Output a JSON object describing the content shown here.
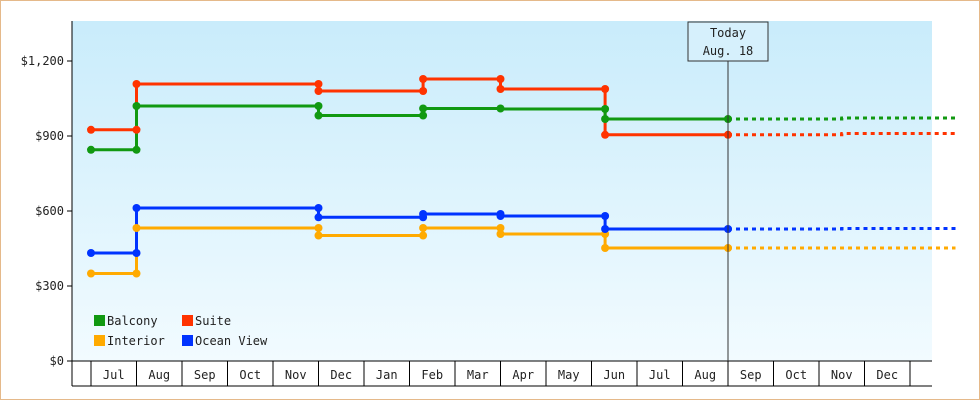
{
  "chart_data": {
    "type": "line",
    "step": true,
    "x_labels": [
      "Jul",
      "Aug",
      "Sep",
      "Oct",
      "Nov",
      "Dec",
      "Jan",
      "Feb",
      "Mar",
      "Apr",
      "May",
      "Jun",
      "Jul",
      "Aug",
      "Sep",
      "Oct",
      "Nov",
      "Dec"
    ],
    "y_ticks": [
      {
        "value": 0,
        "label": "$0"
      },
      {
        "value": 300,
        "label": "$300"
      },
      {
        "value": 600,
        "label": "$600"
      },
      {
        "value": 900,
        "label": "$900"
      },
      {
        "value": 1200,
        "label": "$1,200"
      }
    ],
    "ylim": [
      0,
      1200
    ],
    "grid": false,
    "legend_position": "bottom-left",
    "today_marker": {
      "line1": "Today",
      "line2": "Aug. 18",
      "month_pos": 13.5
    },
    "series": [
      {
        "name": "Balcony",
        "color": "#119911",
        "points": [
          [
            -0.5,
            845
          ],
          [
            0.5,
            845
          ],
          [
            0.5,
            1020
          ],
          [
            4.5,
            1020
          ],
          [
            4.5,
            982
          ],
          [
            6.8,
            982
          ],
          [
            6.8,
            1010
          ],
          [
            8.5,
            1010
          ],
          [
            8.5,
            1008
          ],
          [
            10.8,
            1008
          ],
          [
            10.8,
            968
          ],
          [
            13.5,
            968
          ]
        ],
        "markers": [
          [
            -0.5,
            845
          ],
          [
            0.5,
            845
          ],
          [
            0.5,
            1020
          ],
          [
            4.5,
            1020
          ],
          [
            4.5,
            982
          ],
          [
            6.8,
            982
          ],
          [
            6.8,
            1010
          ],
          [
            8.5,
            1010
          ],
          [
            10.8,
            1008
          ],
          [
            10.8,
            968
          ],
          [
            13.5,
            968
          ]
        ],
        "forecast": [
          [
            13.5,
            968
          ],
          [
            16,
            968
          ],
          [
            16,
            972
          ],
          [
            18.5,
            972
          ]
        ]
      },
      {
        "name": "Suite",
        "color": "#ff3300",
        "points": [
          [
            -0.5,
            925
          ],
          [
            0.5,
            925
          ],
          [
            0.5,
            1108
          ],
          [
            4.5,
            1108
          ],
          [
            4.5,
            1080
          ],
          [
            6.8,
            1080
          ],
          [
            6.8,
            1128
          ],
          [
            8.5,
            1128
          ],
          [
            8.5,
            1088
          ],
          [
            10.8,
            1088
          ],
          [
            10.8,
            905
          ],
          [
            13.5,
            905
          ]
        ],
        "markers": [
          [
            -0.5,
            925
          ],
          [
            0.5,
            925
          ],
          [
            0.5,
            1108
          ],
          [
            4.5,
            1108
          ],
          [
            4.5,
            1080
          ],
          [
            6.8,
            1080
          ],
          [
            6.8,
            1128
          ],
          [
            8.5,
            1128
          ],
          [
            8.5,
            1088
          ],
          [
            10.8,
            1088
          ],
          [
            10.8,
            905
          ],
          [
            13.5,
            905
          ]
        ],
        "forecast": [
          [
            13.5,
            905
          ],
          [
            16,
            905
          ],
          [
            16,
            910
          ],
          [
            18.5,
            910
          ]
        ]
      },
      {
        "name": "Interior",
        "color": "#ffaa00",
        "points": [
          [
            -0.5,
            350
          ],
          [
            0.5,
            350
          ],
          [
            0.5,
            532
          ],
          [
            4.5,
            532
          ],
          [
            4.5,
            502
          ],
          [
            6.8,
            502
          ],
          [
            6.8,
            532
          ],
          [
            8.5,
            532
          ],
          [
            8.5,
            508
          ],
          [
            10.8,
            508
          ],
          [
            10.8,
            452
          ],
          [
            13.5,
            452
          ]
        ],
        "markers": [
          [
            -0.5,
            350
          ],
          [
            0.5,
            350
          ],
          [
            0.5,
            532
          ],
          [
            4.5,
            532
          ],
          [
            4.5,
            502
          ],
          [
            6.8,
            502
          ],
          [
            6.8,
            532
          ],
          [
            8.5,
            532
          ],
          [
            8.5,
            508
          ],
          [
            10.8,
            508
          ],
          [
            10.8,
            452
          ],
          [
            13.5,
            452
          ]
        ],
        "forecast": [
          [
            13.5,
            452
          ],
          [
            18.5,
            452
          ]
        ]
      },
      {
        "name": "Ocean View",
        "color": "#0033ff",
        "points": [
          [
            -0.5,
            432
          ],
          [
            0.5,
            432
          ],
          [
            0.5,
            612
          ],
          [
            4.5,
            612
          ],
          [
            4.5,
            575
          ],
          [
            6.8,
            575
          ],
          [
            6.8,
            588
          ],
          [
            8.5,
            588
          ],
          [
            8.5,
            580
          ],
          [
            10.8,
            580
          ],
          [
            10.8,
            528
          ],
          [
            13.5,
            528
          ]
        ],
        "markers": [
          [
            -0.5,
            432
          ],
          [
            0.5,
            432
          ],
          [
            0.5,
            612
          ],
          [
            4.5,
            612
          ],
          [
            4.5,
            575
          ],
          [
            6.8,
            575
          ],
          [
            6.8,
            588
          ],
          [
            8.5,
            588
          ],
          [
            8.5,
            580
          ],
          [
            10.8,
            580
          ],
          [
            10.8,
            528
          ],
          [
            13.5,
            528
          ]
        ],
        "forecast": [
          [
            13.5,
            528
          ],
          [
            16,
            528
          ],
          [
            16,
            530
          ],
          [
            18.5,
            530
          ]
        ]
      }
    ]
  }
}
